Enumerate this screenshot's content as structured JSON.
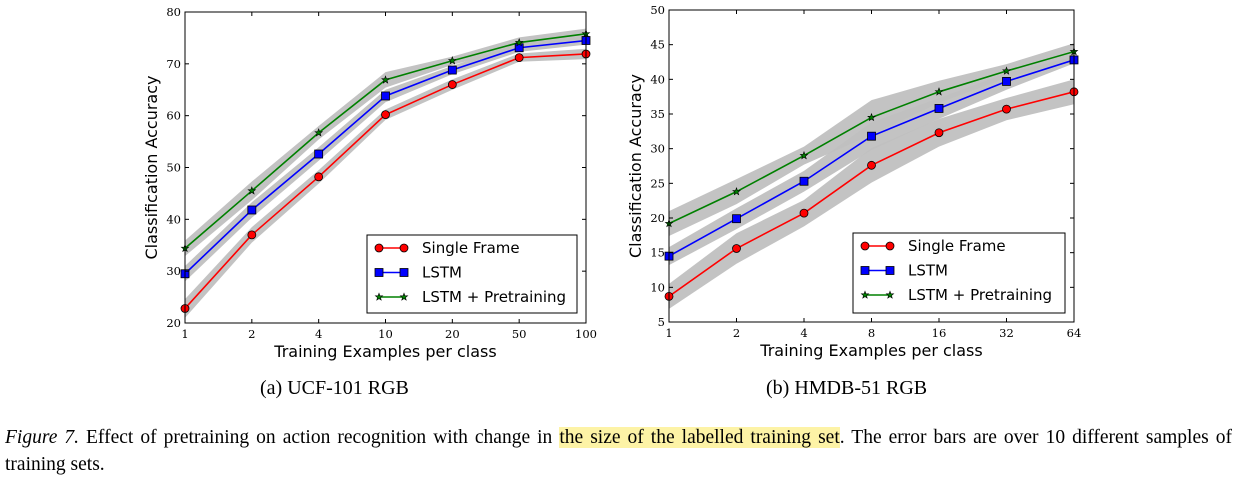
{
  "chart_data": [
    {
      "type": "line",
      "subcaption": "(a) UCF-101 RGB",
      "xlabel": "Training Examples per class",
      "ylabel": "Classification Accuracy",
      "categories": [
        "1",
        "2",
        "4",
        "10",
        "20",
        "50",
        "100"
      ],
      "ylim": [
        20,
        80
      ],
      "yticks": [
        20,
        30,
        40,
        50,
        60,
        70,
        80
      ],
      "legend": "lower-right",
      "grid": false,
      "series": [
        {
          "name": "Single Frame",
          "color": "#ff0000",
          "marker": "circle",
          "values": [
            22.8,
            37.0,
            48.2,
            60.2,
            66.0,
            71.2,
            71.9
          ],
          "error": [
            1.8,
            1.5,
            1.3,
            1.0,
            1.0,
            0.8,
            1.0
          ]
        },
        {
          "name": "LSTM",
          "color": "#0000ff",
          "marker": "square",
          "values": [
            29.5,
            41.8,
            52.6,
            63.8,
            68.8,
            73.1,
            74.5
          ],
          "error": [
            1.5,
            1.5,
            1.3,
            1.2,
            0.8,
            0.8,
            0.8
          ]
        },
        {
          "name": "LSTM + Pretraining",
          "color": "#008000",
          "marker": "star",
          "values": [
            34.4,
            45.5,
            56.7,
            66.9,
            70.6,
            74.1,
            75.8
          ],
          "error": [
            1.5,
            1.8,
            1.3,
            1.5,
            0.8,
            1.0,
            1.0
          ]
        }
      ]
    },
    {
      "type": "line",
      "subcaption": "(b) HMDB-51 RGB",
      "xlabel": "Training Examples per class",
      "ylabel": "Classification Accuracy",
      "categories": [
        "1",
        "2",
        "4",
        "8",
        "16",
        "32",
        "64"
      ],
      "ylim": [
        5,
        50
      ],
      "yticks": [
        5,
        10,
        15,
        20,
        25,
        30,
        35,
        40,
        45,
        50
      ],
      "legend": "lower-right",
      "grid": false,
      "series": [
        {
          "name": "Single Frame",
          "color": "#ff0000",
          "marker": "circle",
          "values": [
            8.7,
            15.6,
            20.7,
            27.6,
            32.3,
            35.7,
            38.2
          ],
          "error": [
            1.8,
            2.2,
            1.9,
            2.5,
            2.0,
            1.6,
            1.8
          ]
        },
        {
          "name": "LSTM",
          "color": "#0000ff",
          "marker": "square",
          "values": [
            14.5,
            19.9,
            25.3,
            31.8,
            35.8,
            39.7,
            42.8
          ],
          "error": [
            1.3,
            1.5,
            1.5,
            2.0,
            1.5,
            1.2,
            0.5
          ]
        },
        {
          "name": "LSTM + Pretraining",
          "color": "#008000",
          "marker": "star",
          "values": [
            19.2,
            23.8,
            29.0,
            34.5,
            38.2,
            41.2,
            44.0
          ],
          "error": [
            1.8,
            1.8,
            1.3,
            2.5,
            1.6,
            1.0,
            1.2
          ]
        }
      ]
    }
  ],
  "band_color": "#c0c0c0",
  "caption": {
    "figure_label": "Figure 7.",
    "text_before": " Effect of pretraining on action recognition with change in ",
    "highlighted": "the size of the labelled training set",
    "text_after": ".  The error bars are over 10 different samples of training sets.",
    "highlight_color": "#fdf3a6"
  }
}
